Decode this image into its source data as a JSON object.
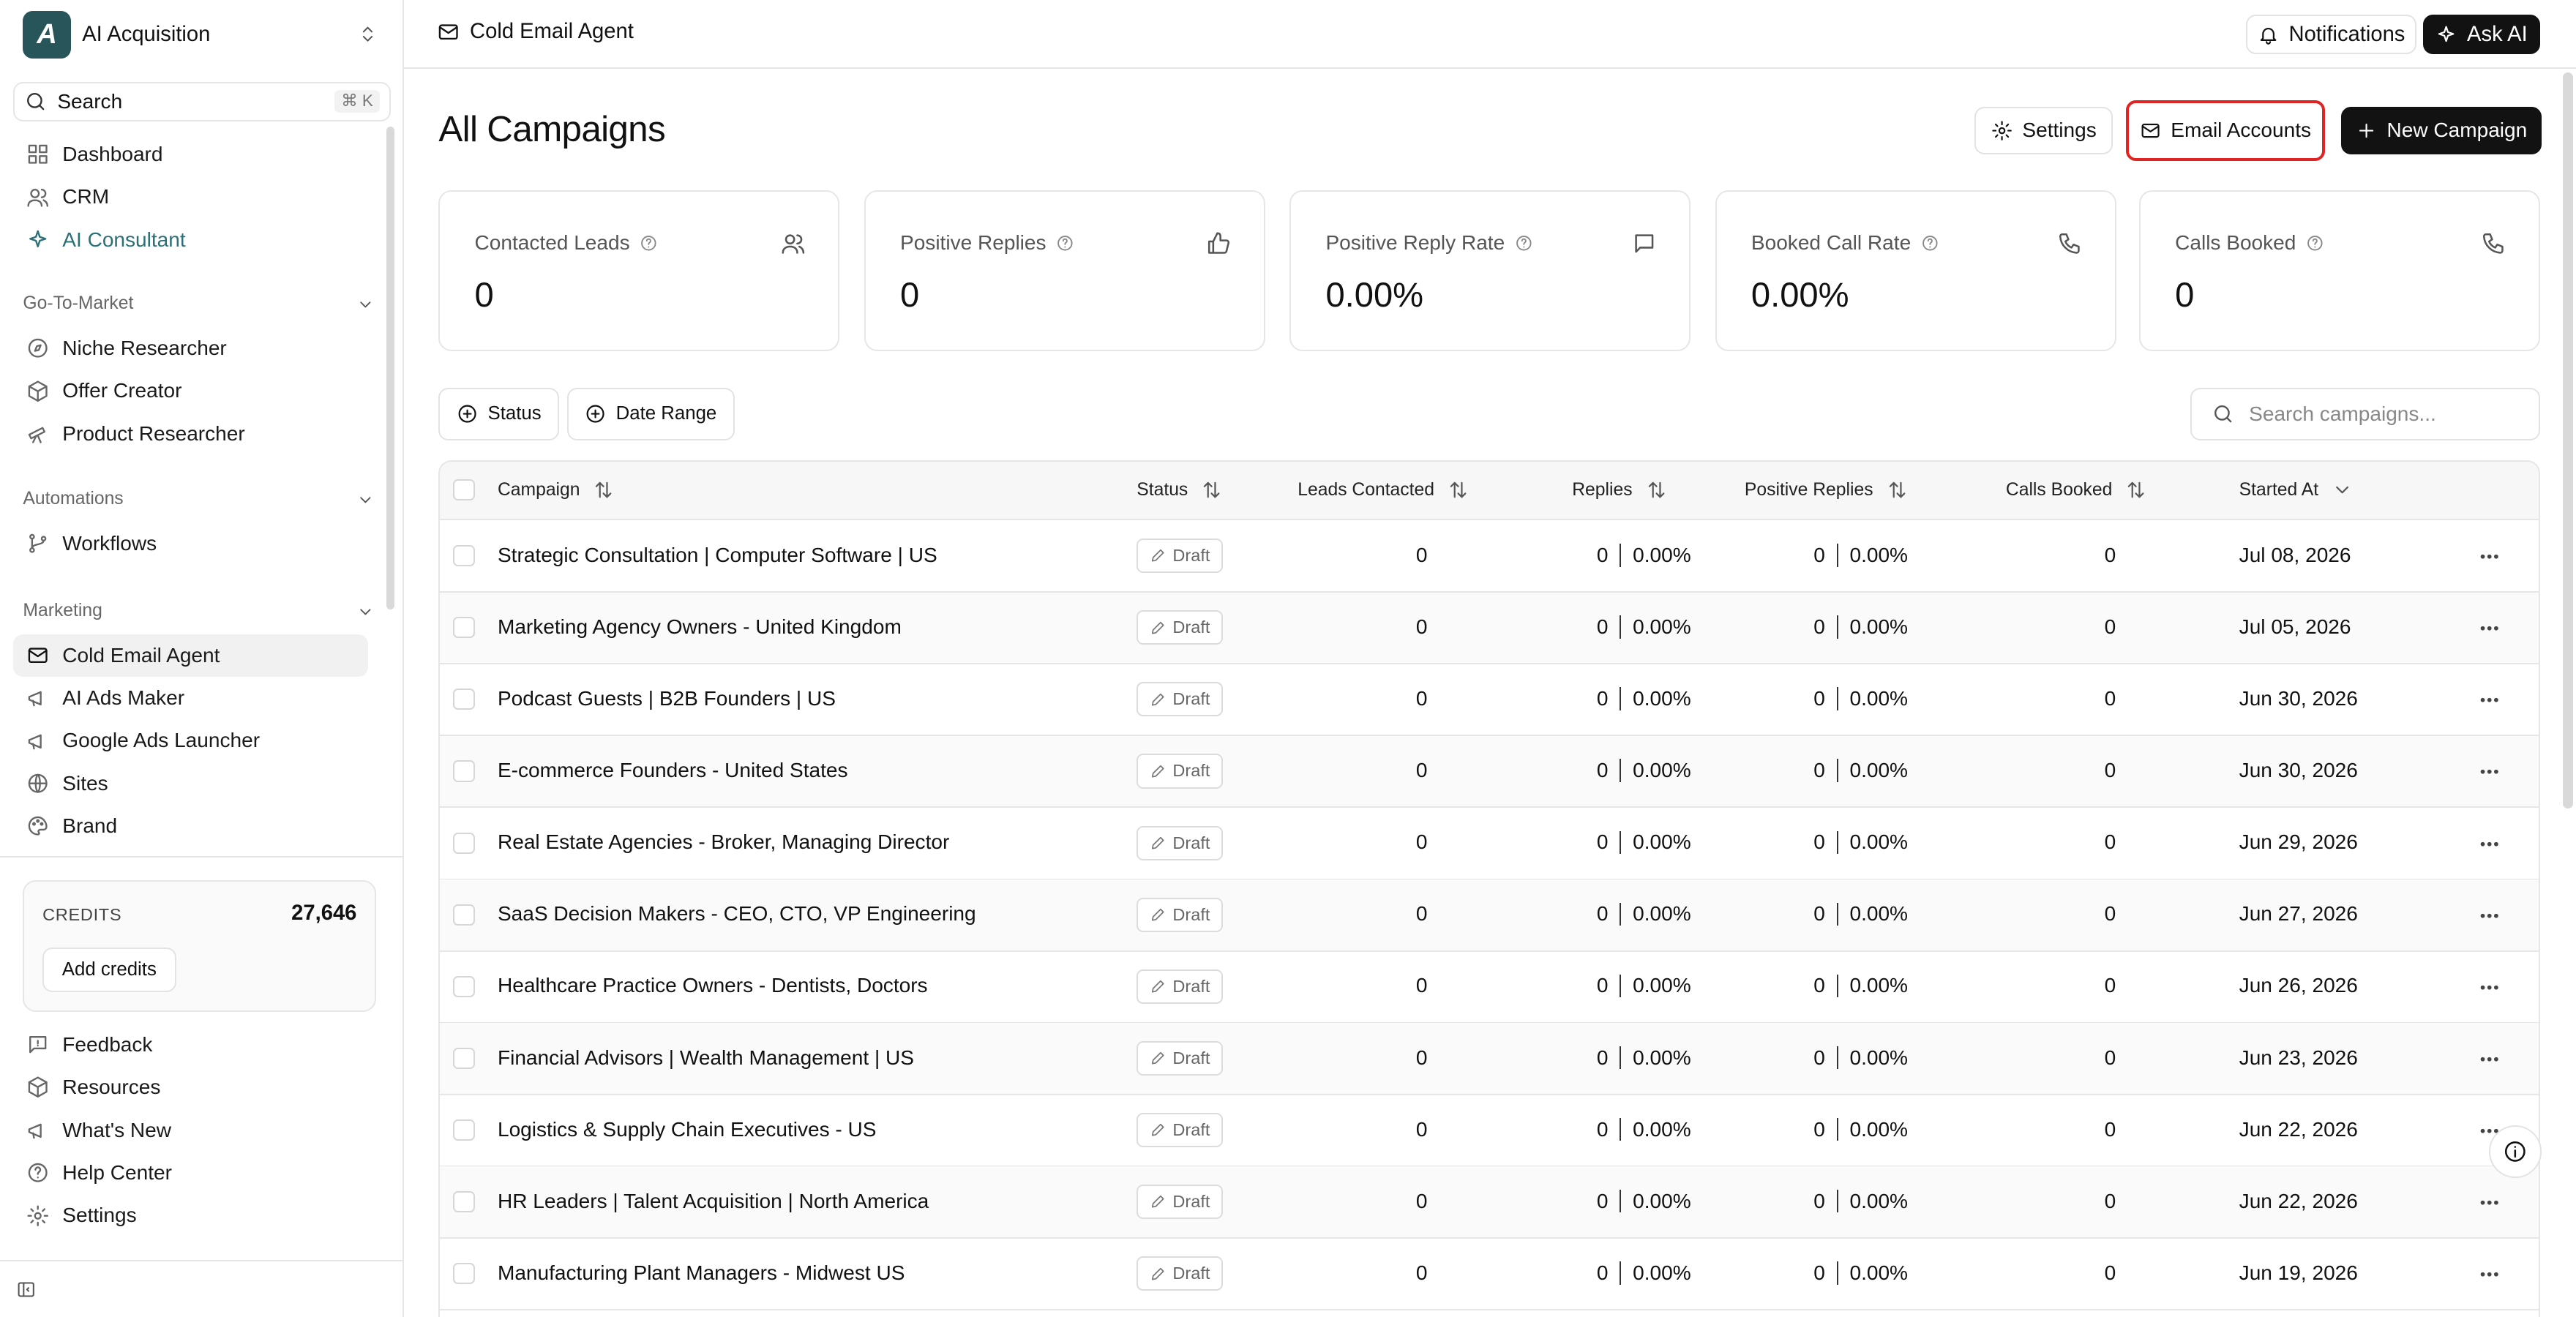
{
  "workspace": {
    "name": "AI Acquisition",
    "logo": "A"
  },
  "search": {
    "label": "Search",
    "shortcut": "⌘ K"
  },
  "nav_primary": [
    {
      "label": "Dashboard",
      "icon": "grid-icon"
    },
    {
      "label": "CRM",
      "icon": "users-icon"
    },
    {
      "label": "AI Consultant",
      "icon": "sparkle-icon"
    }
  ],
  "sections": {
    "gtm": "Go-To-Market",
    "automations": "Automations",
    "marketing": "Marketing"
  },
  "nav_gtm": [
    {
      "label": "Niche Researcher",
      "icon": "compass-icon"
    },
    {
      "label": "Offer Creator",
      "icon": "box-icon"
    },
    {
      "label": "Product Researcher",
      "icon": "telescope-icon"
    }
  ],
  "nav_automations": [
    {
      "label": "Workflows",
      "icon": "branch-icon"
    }
  ],
  "nav_marketing": [
    {
      "label": "Cold Email Agent",
      "icon": "mail-icon"
    },
    {
      "label": "AI Ads Maker",
      "icon": "megaphone-icon"
    },
    {
      "label": "Google Ads Launcher",
      "icon": "megaphone-icon"
    },
    {
      "label": "Sites",
      "icon": "globe-icon"
    },
    {
      "label": "Brand",
      "icon": "palette-icon"
    }
  ],
  "credits": {
    "title": "CREDITS",
    "value": "27,646",
    "button": "Add credits"
  },
  "nav_footer": [
    {
      "label": "Feedback",
      "icon": "feedback-icon"
    },
    {
      "label": "Resources",
      "icon": "box-icon"
    },
    {
      "label": "What's New",
      "icon": "megaphone-icon"
    },
    {
      "label": "Help Center",
      "icon": "help-icon"
    },
    {
      "label": "Settings",
      "icon": "gear-icon"
    }
  ],
  "header": {
    "breadcrumb": "Cold Email Agent",
    "notifications": "Notifications",
    "ask_ai": "Ask AI"
  },
  "page": {
    "title": "All Campaigns",
    "settings": "Settings",
    "email_accounts": "Email Accounts",
    "new_campaign": "New Campaign"
  },
  "stats": [
    {
      "label": "Contacted Leads",
      "value": "0",
      "icon": "users-icon"
    },
    {
      "label": "Positive Replies",
      "value": "0",
      "icon": "thumbs-up-icon"
    },
    {
      "label": "Positive Reply Rate",
      "value": "0.00%",
      "icon": "message-icon"
    },
    {
      "label": "Booked Call Rate",
      "value": "0.00%",
      "icon": "phone-icon"
    },
    {
      "label": "Calls Booked",
      "value": "0",
      "icon": "phone-icon"
    }
  ],
  "filters": {
    "status": "Status",
    "date_range": "Date Range",
    "search_placeholder": "Search campaigns..."
  },
  "columns": {
    "campaign": "Campaign",
    "status": "Status",
    "leads": "Leads Contacted",
    "replies": "Replies",
    "positive": "Positive Replies",
    "calls": "Calls Booked",
    "started": "Started At"
  },
  "rows": [
    {
      "name": "Strategic Consultation | Computer Software | US",
      "status": "Draft",
      "leads": "0",
      "replies": "0",
      "replies_pct": "0.00%",
      "positive": "0",
      "positive_pct": "0.00%",
      "calls": "0",
      "started": "Jul 08, 2026"
    },
    {
      "name": "Marketing Agency Owners - United Kingdom",
      "status": "Draft",
      "leads": "0",
      "replies": "0",
      "replies_pct": "0.00%",
      "positive": "0",
      "positive_pct": "0.00%",
      "calls": "0",
      "started": "Jul 05, 2026"
    },
    {
      "name": "Podcast Guests | B2B Founders | US",
      "status": "Draft",
      "leads": "0",
      "replies": "0",
      "replies_pct": "0.00%",
      "positive": "0",
      "positive_pct": "0.00%",
      "calls": "0",
      "started": "Jun 30, 2026"
    },
    {
      "name": "E-commerce Founders - United States",
      "status": "Draft",
      "leads": "0",
      "replies": "0",
      "replies_pct": "0.00%",
      "positive": "0",
      "positive_pct": "0.00%",
      "calls": "0",
      "started": "Jun 30, 2026"
    },
    {
      "name": "Real Estate Agencies - Broker, Managing Director",
      "status": "Draft",
      "leads": "0",
      "replies": "0",
      "replies_pct": "0.00%",
      "positive": "0",
      "positive_pct": "0.00%",
      "calls": "0",
      "started": "Jun 29, 2026"
    },
    {
      "name": "SaaS Decision Makers - CEO, CTO, VP Engineering",
      "status": "Draft",
      "leads": "0",
      "replies": "0",
      "replies_pct": "0.00%",
      "positive": "0",
      "positive_pct": "0.00%",
      "calls": "0",
      "started": "Jun 27, 2026"
    },
    {
      "name": "Healthcare Practice Owners - Dentists, Doctors",
      "status": "Draft",
      "leads": "0",
      "replies": "0",
      "replies_pct": "0.00%",
      "positive": "0",
      "positive_pct": "0.00%",
      "calls": "0",
      "started": "Jun 26, 2026"
    },
    {
      "name": "Financial Advisors | Wealth Management | US",
      "status": "Draft",
      "leads": "0",
      "replies": "0",
      "replies_pct": "0.00%",
      "positive": "0",
      "positive_pct": "0.00%",
      "calls": "0",
      "started": "Jun 23, 2026"
    },
    {
      "name": "Logistics & Supply Chain Executives - US",
      "status": "Draft",
      "leads": "0",
      "replies": "0",
      "replies_pct": "0.00%",
      "positive": "0",
      "positive_pct": "0.00%",
      "calls": "0",
      "started": "Jun 22, 2026"
    },
    {
      "name": "HR Leaders | Talent Acquisition | North America",
      "status": "Draft",
      "leads": "0",
      "replies": "0",
      "replies_pct": "0.00%",
      "positive": "0",
      "positive_pct": "0.00%",
      "calls": "0",
      "started": "Jun 22, 2026"
    },
    {
      "name": "Manufacturing Plant Managers - Midwest US",
      "status": "Draft",
      "leads": "0",
      "replies": "0",
      "replies_pct": "0.00%",
      "positive": "0",
      "positive_pct": "0.00%",
      "calls": "0",
      "started": "Jun 19, 2026"
    }
  ],
  "colors": {
    "accent": "#2b6f77",
    "highlight": "#e02424",
    "primary_button": "#121212"
  }
}
